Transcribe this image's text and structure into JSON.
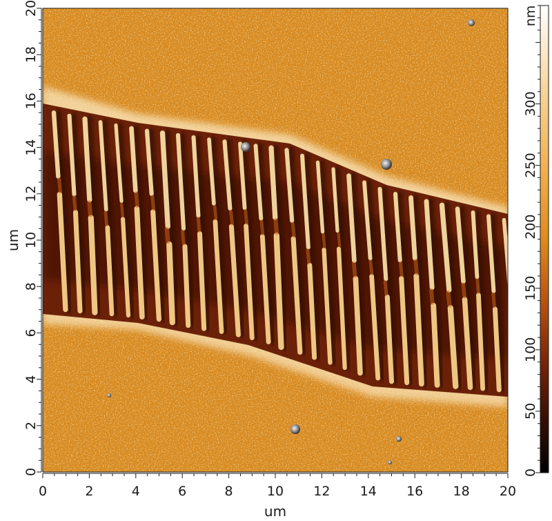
{
  "figure": {
    "x_axis": {
      "label": "um",
      "ticks": [
        "0",
        "2",
        "4",
        "6",
        "8",
        "10",
        "12",
        "14",
        "16",
        "18",
        "20"
      ],
      "range": [
        0,
        20
      ]
    },
    "y_axis": {
      "label": "um",
      "ticks": [
        "0",
        "2",
        "4",
        "6",
        "8",
        "10",
        "12",
        "14",
        "16",
        "18",
        "20"
      ],
      "range": [
        0,
        20
      ]
    },
    "colorbar": {
      "unit": "nm",
      "ticks": [
        "0",
        "50",
        "100",
        "150",
        "200",
        "250",
        "300"
      ],
      "range": [
        0,
        380
      ],
      "colors": [
        "#000000",
        "#3a0f04",
        "#7a2608",
        "#b65110",
        "#e08a1c",
        "#f2ad4a",
        "#f7d59a",
        "#ffffff"
      ]
    },
    "image": {
      "colors": {
        "substrate": "#d98a1f",
        "substrate_light": "#f0b24c",
        "trench": "#6b2108",
        "trench_dark": "#3d1005",
        "ridge": "#fbe3a8",
        "edge": "#fbe7bf"
      }
    }
  }
}
